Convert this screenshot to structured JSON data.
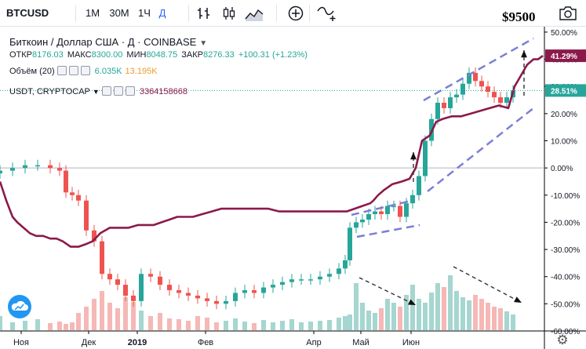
{
  "toolbar": {
    "symbol": "BTCUSD",
    "intervals": [
      "1M",
      "30M",
      "1Ч",
      "Д"
    ],
    "active_interval": "Д"
  },
  "annotation_target": "$9500",
  "legend": {
    "title": "Биткоин / Доллар США · Д · COINBASE",
    "ohlc": {
      "open_label": "ОТКР",
      "open": "8176.03",
      "high_label": "МАКС",
      "high": "8300.00",
      "low_label": "МИН",
      "low": "8048.75",
      "close_label": "ЗАКР",
      "close": "8276.33",
      "change": "+100.31 (+1.23%)"
    },
    "volume": {
      "label": "Объём (20)",
      "value1": "6.035K",
      "value2": "13.195K"
    },
    "usdt": {
      "label": "USDT, CRYPTOCAP",
      "value": "3364158668"
    }
  },
  "colors": {
    "up": "#26a69a",
    "down": "#ef5350",
    "usdt_line": "#8b1a4a",
    "channel": "#7b7fd6",
    "badge_usdt": "#8b1a4a",
    "badge_btc": "#26a69a"
  },
  "chart_data": {
    "type": "line",
    "y_axis": {
      "unit": "%",
      "ylim": [
        -60,
        52
      ],
      "ticks": [
        "50.00%",
        "40.00%",
        "30.00%",
        "20.00%",
        "10.00%",
        "0.00%",
        "-10.00%",
        "-20.00%",
        "-30.00%",
        "-40.00%",
        "-50.00%",
        "-60.00%"
      ],
      "tick_values": [
        50,
        40,
        30,
        20,
        10,
        0,
        -10,
        -20,
        -30,
        -40,
        -50,
        -60
      ]
    },
    "x_axis": {
      "ticks": [
        "Ноя",
        "Дек",
        "2019",
        "Фев",
        "Апр",
        "Май",
        "Июн"
      ],
      "tick_days": [
        27,
        113,
        175,
        262,
        400,
        460,
        524
      ]
    },
    "badges": [
      {
        "label": "41.29%",
        "value": 41.29,
        "series": "usdt"
      },
      {
        "label": "28.51%",
        "value": 28.51,
        "series": "btc"
      }
    ],
    "series": [
      {
        "name": "USDT, CRYPTOCAP",
        "kind": "line",
        "days": [
          0,
          8,
          16,
          22,
          30,
          38,
          46,
          55,
          64,
          72,
          80,
          90,
          100,
          110,
          118,
          128,
          140,
          152,
          164,
          176,
          186,
          196,
          206,
          216,
          226,
          236,
          246,
          258,
          270,
          282,
          294,
          306,
          318,
          330,
          342,
          356,
          370,
          384,
          398,
          410,
          420,
          432,
          442,
          452,
          462,
          472,
          476,
          482,
          490,
          500,
          512,
          522,
          530,
          538,
          548,
          556,
          564,
          576,
          588,
          600,
          612,
          624,
          636,
          648,
          656,
          664,
          672,
          680,
          686,
          692
        ],
        "values": [
          -5,
          -12,
          -18,
          -20,
          -22,
          -24,
          -25,
          -25,
          -26,
          -26,
          -27,
          -29,
          -29,
          -28,
          -27,
          -24,
          -22,
          -22,
          -22,
          -21,
          -21,
          -21,
          -20,
          -19,
          -18,
          -18,
          -18,
          -17,
          -16,
          -15,
          -15,
          -15,
          -15,
          -15,
          -15,
          -16,
          -16,
          -16,
          -16,
          -16,
          -16,
          -16,
          -16,
          -15,
          -14,
          -13,
          -12,
          -10,
          -8,
          -6,
          -5,
          -4,
          0,
          10,
          12,
          17,
          18,
          19,
          19,
          20,
          21,
          22,
          23,
          22,
          30,
          34,
          38,
          40,
          40,
          41.29
        ]
      },
      {
        "name": "BTCUSD",
        "kind": "candles",
        "days": [
          0,
          16,
          32,
          48,
          64,
          76,
          84,
          92,
          100,
          110,
          120,
          130,
          140,
          150,
          160,
          170,
          180,
          192,
          204,
          216,
          228,
          240,
          252,
          264,
          276,
          288,
          300,
          312,
          324,
          336,
          348,
          360,
          372,
          384,
          396,
          408,
          420,
          432,
          440,
          446,
          454,
          462,
          470,
          478,
          486,
          494,
          502,
          510,
          518,
          526,
          534,
          542,
          550,
          558,
          566,
          574,
          582,
          590,
          598,
          606,
          614,
          622,
          630,
          638,
          646,
          654
        ],
        "values": [
          -1,
          0,
          1,
          1,
          0,
          -1,
          -9,
          -10,
          -12,
          -23,
          -27,
          -39,
          -41,
          -43,
          -47,
          -49,
          -39,
          -40,
          -43,
          -45,
          -46,
          -47,
          -48,
          -49,
          -50,
          -49,
          -46,
          -45,
          -46,
          -44,
          -43,
          -42,
          -41,
          -41,
          -41,
          -40,
          -39,
          -37,
          -34,
          -22,
          -20,
          -19,
          -17,
          -16,
          -17,
          -14,
          -14,
          -18,
          -13,
          -10,
          -3,
          10,
          18,
          24,
          22,
          26,
          27,
          31,
          35,
          32,
          30,
          28,
          26,
          24,
          26,
          28.51
        ]
      },
      {
        "name": "Объём (20)",
        "kind": "volume",
        "values": [
          18,
          10,
          12,
          14,
          9,
          11,
          8,
          10,
          22,
          30,
          40,
          50,
          35,
          28,
          42,
          36,
          25,
          18,
          22,
          15,
          14,
          12,
          18,
          16,
          10,
          12,
          15,
          11,
          9,
          13,
          10,
          12,
          14,
          10,
          11,
          12,
          13,
          16,
          18,
          20,
          60,
          35,
          25,
          22,
          28,
          40,
          35,
          30,
          45,
          58,
          40,
          35,
          48,
          60,
          55,
          70,
          50,
          42,
          38,
          45,
          40,
          35,
          30,
          28,
          24,
          20
        ]
      }
    ]
  }
}
